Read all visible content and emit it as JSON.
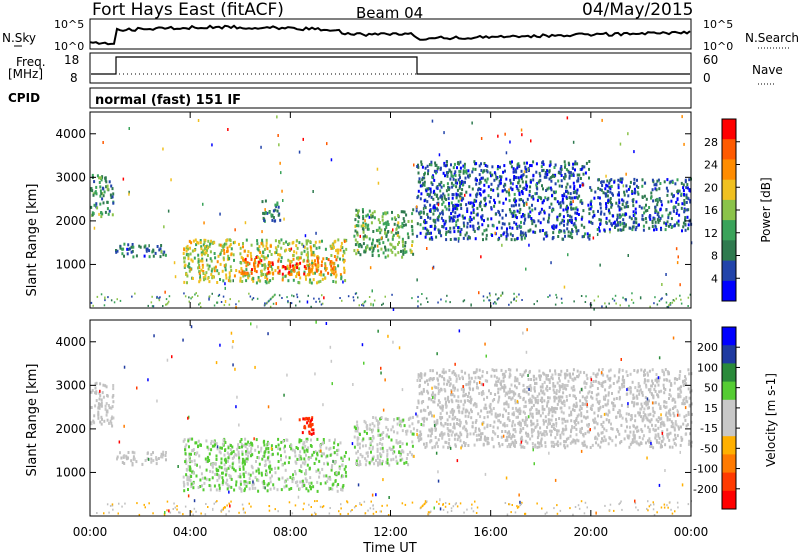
{
  "header": {
    "station": "Fort Hays East (fitACF)",
    "beam": "Beam 04",
    "date": "04/May/2015"
  },
  "noise_panel": {
    "left_label": "N.Sky",
    "right_label": "N.Search",
    "left_ticks": [
      "10^5",
      "10^0"
    ],
    "right_ticks": [
      "10^5",
      "10^0"
    ]
  },
  "freq_panel": {
    "left_label_line1": "Freq.",
    "left_label_line2": "[MHz]",
    "right_label": "Nave",
    "left_ticks": [
      "18",
      "8"
    ],
    "right_ticks": [
      "60",
      "0"
    ]
  },
  "cpid_panel": {
    "label": "CPID",
    "value": "normal (fast) 151 IF"
  },
  "colors": {
    "power_scale": [
      "#0000ff",
      "#2244aa",
      "#2f7a4f",
      "#3aa35a",
      "#8bc34a",
      "#f0c020",
      "#ff8c00",
      "#ff5a00",
      "#ff0000"
    ],
    "velocity_scale": [
      "#0000ff",
      "#1f3aa0",
      "#2a8a3a",
      "#55cc33",
      "#c8c8c8",
      "#c8c8c8",
      "#ffb000",
      "#ff7a00",
      "#ff3a00",
      "#ff0000"
    ],
    "ground_scatter": "#c0c0c0"
  },
  "chart_data": [
    {
      "type": "heatmap",
      "name": "Power",
      "ylabel": "Slant Range [km]",
      "y_ticks": [
        "4000",
        "3000",
        "2000",
        "1000"
      ],
      "ylim": [
        0,
        4500
      ],
      "colorbar_label": "Power [dB]",
      "colorbar_ticks": [
        "28",
        "24",
        "20",
        "16",
        "12",
        "8",
        "4"
      ],
      "colorbar_range": [
        0,
        30
      ],
      "regions": [
        {
          "t_start": 0.0,
          "t_end": 0.9,
          "r_low": 2100,
          "r_high": 3100,
          "value": 10
        },
        {
          "t_start": 1.0,
          "t_end": 3.0,
          "r_low": 1200,
          "r_high": 1500,
          "value": 8
        },
        {
          "t_start": 3.7,
          "t_end": 10.2,
          "r_low": 600,
          "r_high": 1600,
          "value": 16
        },
        {
          "t_start": 6.0,
          "t_end": 9.8,
          "r_low": 800,
          "r_high": 1200,
          "value": 24
        },
        {
          "t_start": 6.8,
          "t_end": 7.6,
          "r_low": 2000,
          "r_high": 2500,
          "value": 8
        },
        {
          "t_start": 10.5,
          "t_end": 12.9,
          "r_low": 1200,
          "r_high": 2300,
          "value": 12
        },
        {
          "t_start": 13.0,
          "t_end": 20.0,
          "r_low": 1600,
          "r_high": 3400,
          "value": 6
        },
        {
          "t_start": 20.0,
          "t_end": 24.0,
          "r_low": 1800,
          "r_high": 3000,
          "value": 6
        }
      ]
    },
    {
      "type": "heatmap",
      "name": "Velocity",
      "ylabel": "Slant Range [km]",
      "y_ticks": [
        "4000",
        "3000",
        "2000",
        "1000"
      ],
      "ylim": [
        0,
        4500
      ],
      "colorbar_label": "Velocity [m s-1]",
      "colorbar_ticks": [
        "200",
        "100",
        "50",
        "15",
        "-15",
        "-50",
        "-100",
        "-200"
      ],
      "colorbar_range": [
        -250,
        250
      ],
      "regions": [
        {
          "t_start": 0.0,
          "t_end": 0.9,
          "r_low": 2100,
          "r_high": 3100,
          "value": 0
        },
        {
          "t_start": 1.0,
          "t_end": 3.0,
          "r_low": 1200,
          "r_high": 1500,
          "value": 0
        },
        {
          "t_start": 3.7,
          "t_end": 10.2,
          "r_low": 600,
          "r_high": 1800,
          "value": 50
        },
        {
          "t_start": 8.3,
          "t_end": 8.9,
          "r_low": 1900,
          "r_high": 2300,
          "value": -200
        },
        {
          "t_start": 10.5,
          "t_end": 12.9,
          "r_low": 1200,
          "r_high": 2300,
          "value": 40
        },
        {
          "t_start": 13.0,
          "t_end": 24.0,
          "r_low": 1600,
          "r_high": 3400,
          "value": 0
        }
      ]
    }
  ],
  "time_axis": {
    "label": "Time UT",
    "ticks": [
      "00:00",
      "04:00",
      "08:00",
      "12:00",
      "16:00",
      "20:00",
      "00:00"
    ],
    "range": [
      0,
      24
    ]
  }
}
